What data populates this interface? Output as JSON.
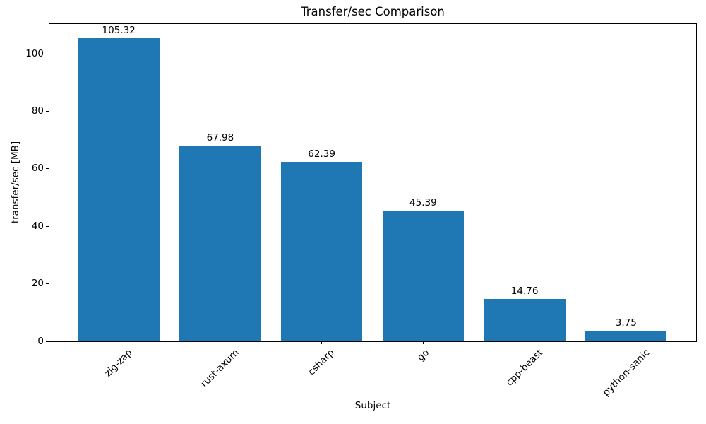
{
  "chart_data": {
    "type": "bar",
    "title": "Transfer/sec Comparison",
    "xlabel": "Subject",
    "ylabel": "transfer/sec [MB]",
    "categories": [
      "zig-zap",
      "rust-axum",
      "csharp",
      "go",
      "cpp-beast",
      "python-sanic"
    ],
    "values": [
      105.32,
      67.98,
      62.39,
      45.39,
      14.76,
      3.75
    ],
    "bar_labels": [
      "105.32",
      "67.98",
      "62.39",
      "45.39",
      "14.76",
      "3.75"
    ],
    "yticks": [
      0,
      20,
      40,
      60,
      80,
      100
    ],
    "ylim": [
      0,
      110.6
    ],
    "xlim": [
      -0.69,
      5.69
    ],
    "bar_width_units": 0.8,
    "x_tick_rotation_deg": 45,
    "bar_color": "#1f77b4",
    "axis_color": "#000000",
    "text_color": "#000000",
    "background_color": "#ffffff",
    "grid": false,
    "legend_position": "none"
  }
}
